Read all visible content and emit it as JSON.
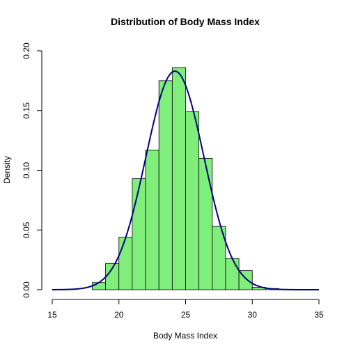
{
  "chart_data": {
    "type": "bar",
    "title": "Distribution of Body Mass Index",
    "xlabel": "Body Mass Index",
    "ylabel": "Density",
    "xlim": [
      15,
      35
    ],
    "ylim": [
      0,
      0.2
    ],
    "x_ticks": [
      15,
      20,
      25,
      30,
      35
    ],
    "y_ticks": [
      0.0,
      0.05,
      0.1,
      0.15,
      0.2
    ],
    "y_tick_labels": [
      "0.00",
      "0.05",
      "0.10",
      "0.15",
      "0.20"
    ],
    "x_tick_labels": [
      "15",
      "20",
      "25",
      "30",
      "35"
    ],
    "bins": [
      {
        "x0": 18,
        "x1": 19,
        "density": 0.006
      },
      {
        "x0": 19,
        "x1": 20,
        "density": 0.022
      },
      {
        "x0": 20,
        "x1": 21,
        "density": 0.044
      },
      {
        "x0": 21,
        "x1": 22,
        "density": 0.093
      },
      {
        "x0": 22,
        "x1": 23,
        "density": 0.117
      },
      {
        "x0": 23,
        "x1": 24,
        "density": 0.175
      },
      {
        "x0": 24,
        "x1": 25,
        "density": 0.186
      },
      {
        "x0": 25,
        "x1": 26,
        "density": 0.149
      },
      {
        "x0": 26,
        "x1": 27,
        "density": 0.11
      },
      {
        "x0": 27,
        "x1": 28,
        "density": 0.053
      },
      {
        "x0": 28,
        "x1": 29,
        "density": 0.026
      },
      {
        "x0": 29,
        "x1": 30,
        "density": 0.016
      },
      {
        "x0": 30,
        "x1": 31,
        "density": 0.002
      },
      {
        "x0": 31,
        "x1": 32,
        "density": 0.001
      }
    ],
    "density_curve": {
      "type": "normal",
      "mean": 24.2,
      "sd": 2.18
    },
    "grid": false,
    "colors": {
      "bar_fill": "#80ee7a",
      "bar_stroke": "#000000",
      "curve": "#000080"
    }
  }
}
